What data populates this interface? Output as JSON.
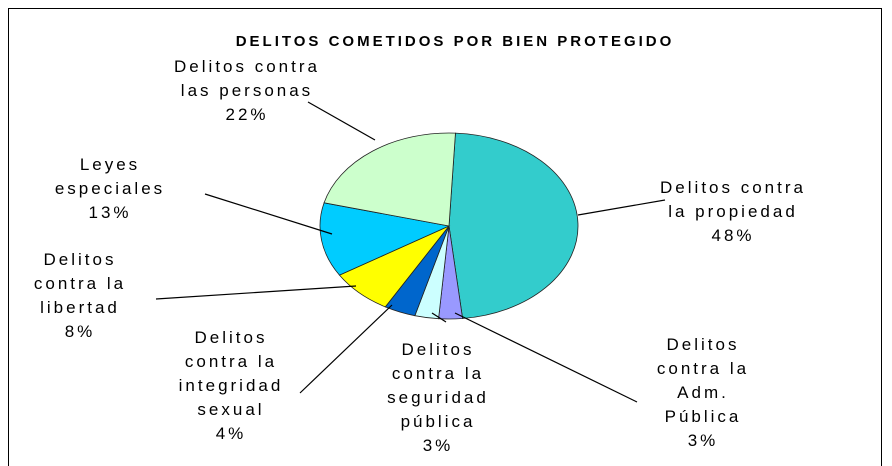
{
  "chart_data": {
    "type": "pie",
    "title": "DELITOS COMETIDOS POR BIEN PROTEGIDO",
    "categories": [
      "Delitos contra la propiedad",
      "Delitos contra la Adm. Pública",
      "Delitos contra la seguridad pública",
      "Delitos contra la integridad sexual",
      "Delitos contra la libertad",
      "Leyes especiales",
      "Delitos contra las personas"
    ],
    "values": [
      48,
      3,
      3,
      4,
      8,
      13,
      22
    ],
    "value_labels": [
      "48%",
      "3%",
      "3%",
      "4%",
      "8%",
      "13%",
      "22%"
    ],
    "colors": [
      "#33CCCC",
      "#9999FF",
      "#CCFFFF",
      "#0066CC",
      "#FFFF00",
      "#00CCFF",
      "#CCFFCC"
    ]
  }
}
